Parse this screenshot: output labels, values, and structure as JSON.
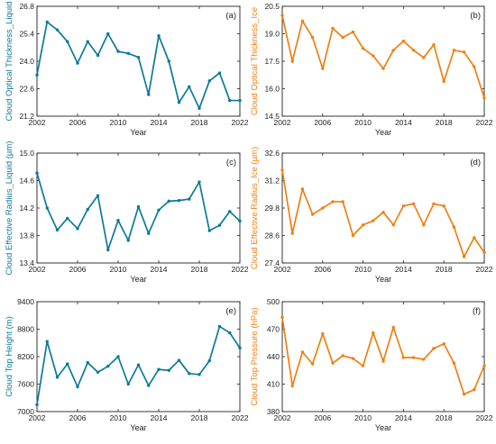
{
  "chart_data": [
    {
      "type": "line",
      "panel_label": "(a)",
      "xlabel": "Year",
      "ylabel": "Cloud Optical Thickness_Liquid",
      "color": "#0b7a9a",
      "x": [
        2002,
        2003,
        2004,
        2005,
        2006,
        2007,
        2008,
        2009,
        2010,
        2011,
        2012,
        2013,
        2014,
        2015,
        2016,
        2017,
        2018,
        2019,
        2020,
        2021,
        2022
      ],
      "y": [
        23.3,
        26.0,
        25.6,
        25.0,
        23.9,
        25.0,
        24.3,
        25.4,
        24.5,
        24.4,
        24.2,
        22.3,
        25.3,
        24.0,
        21.9,
        22.7,
        21.6,
        23.0,
        23.4,
        22.0,
        22.0
      ],
      "ylim": [
        21.2,
        26.8
      ],
      "yticks": [
        "21.2",
        "22.6",
        "24.0",
        "25.4",
        "26.8"
      ],
      "xlim": [
        2002,
        2022
      ],
      "xticks": [
        "2002",
        "2006",
        "2010",
        "2014",
        "2018",
        "2022"
      ]
    },
    {
      "type": "line",
      "panel_label": "(b)",
      "xlabel": "Year",
      "ylabel": "Cloud Optical Thickness_Ice",
      "color": "#f07f12",
      "x": [
        2002,
        2003,
        2004,
        2005,
        2006,
        2007,
        2008,
        2009,
        2010,
        2011,
        2012,
        2013,
        2014,
        2015,
        2016,
        2017,
        2018,
        2019,
        2020,
        2021,
        2022
      ],
      "y": [
        20.0,
        17.5,
        19.7,
        18.8,
        17.1,
        19.3,
        18.8,
        19.1,
        18.2,
        17.8,
        17.1,
        18.1,
        18.6,
        18.1,
        17.7,
        18.4,
        16.4,
        18.1,
        18.0,
        17.2,
        15.5
      ],
      "ylim": [
        14.5,
        20.5
      ],
      "yticks": [
        "14.5",
        "16.0",
        "17.5",
        "19.0",
        "20.5"
      ],
      "xlim": [
        2002,
        2022
      ],
      "xticks": [
        "2002",
        "2006",
        "2010",
        "2014",
        "2018",
        "2022"
      ]
    },
    {
      "type": "line",
      "panel_label": "(c)",
      "xlabel": "Year",
      "ylabel": "Cloud Effective Radius_Liquid (µm)",
      "color": "#0b7a9a",
      "x": [
        2002,
        2003,
        2004,
        2005,
        2006,
        2007,
        2008,
        2009,
        2010,
        2011,
        2012,
        2013,
        2014,
        2015,
        2016,
        2017,
        2018,
        2019,
        2020,
        2021,
        2022
      ],
      "y": [
        14.71,
        14.2,
        13.88,
        14.05,
        13.9,
        14.18,
        14.38,
        13.59,
        14.02,
        13.73,
        14.22,
        13.83,
        14.17,
        14.3,
        14.31,
        14.33,
        14.58,
        13.87,
        13.95,
        14.15,
        14.01
      ],
      "ylim": [
        13.4,
        15.0
      ],
      "yticks": [
        "13.4",
        "13.8",
        "14.2",
        "14.6",
        "15.0"
      ],
      "xlim": [
        2002,
        2022
      ],
      "xticks": [
        "2002",
        "2006",
        "2010",
        "2014",
        "2018",
        "2022"
      ]
    },
    {
      "type": "line",
      "panel_label": "(d)",
      "xlabel": "Year",
      "ylabel": "Cloud Effective Radius_Ice (µm)",
      "color": "#f07f12",
      "x": [
        2002,
        2003,
        2004,
        2005,
        2006,
        2007,
        2008,
        2009,
        2010,
        2011,
        2012,
        2013,
        2014,
        2015,
        2016,
        2017,
        2018,
        2019,
        2020,
        2021,
        2022
      ],
      "y": [
        31.8,
        28.8,
        30.9,
        29.7,
        30.0,
        30.3,
        30.3,
        28.7,
        29.2,
        29.4,
        29.8,
        29.2,
        30.1,
        30.2,
        29.2,
        30.2,
        30.1,
        29.1,
        27.7,
        28.6,
        27.9
      ],
      "ylim": [
        27.4,
        32.6
      ],
      "yticks": [
        "27.4",
        "28.6",
        "29.8",
        "31.2",
        "32.6"
      ],
      "xlim": [
        2002,
        2022
      ],
      "xticks": [
        "2002",
        "2006",
        "2010",
        "2014",
        "2018",
        "2022"
      ]
    },
    {
      "type": "line",
      "panel_label": "(e)",
      "xlabel": "Year",
      "ylabel": "Cloud Top Height (m)",
      "color": "#0b7a9a",
      "x": [
        2002,
        2003,
        2004,
        2005,
        2006,
        2007,
        2008,
        2009,
        2010,
        2011,
        2012,
        2013,
        2014,
        2015,
        2016,
        2017,
        2018,
        2019,
        2020,
        2021,
        2022
      ],
      "y": [
        7150,
        8530,
        7750,
        8040,
        7540,
        8070,
        7860,
        7990,
        8200,
        7600,
        8020,
        7570,
        7920,
        7900,
        8120,
        7830,
        7810,
        8110,
        8860,
        8720,
        8390
      ],
      "ylim": [
        7000,
        9400
      ],
      "yticks": [
        "7000",
        "7600",
        "8200",
        "8800",
        "9400"
      ],
      "xlim": [
        2002,
        2022
      ],
      "xticks": [
        "2002",
        "2006",
        "2010",
        "2014",
        "2018",
        "2022"
      ]
    },
    {
      "type": "line",
      "panel_label": "(f)",
      "xlabel": "Year",
      "ylabel": "Cloud Top Pressure (hPa)",
      "color": "#f07f12",
      "x": [
        2002,
        2003,
        2004,
        2005,
        2006,
        2007,
        2008,
        2009,
        2010,
        2011,
        2012,
        2013,
        2014,
        2015,
        2016,
        2017,
        2018,
        2019,
        2020,
        2021,
        2022
      ],
      "y": [
        483,
        408,
        445,
        432,
        465,
        433,
        441,
        438,
        430,
        466,
        435,
        472,
        439,
        439,
        437,
        449,
        454,
        433,
        399,
        404,
        430
      ],
      "ylim": [
        380,
        500
      ],
      "yticks": [
        "380",
        "410",
        "440",
        "470",
        "500"
      ],
      "xlim": [
        2002,
        2022
      ],
      "xticks": [
        "2002",
        "2006",
        "2010",
        "2014",
        "2018",
        "2022"
      ]
    }
  ]
}
